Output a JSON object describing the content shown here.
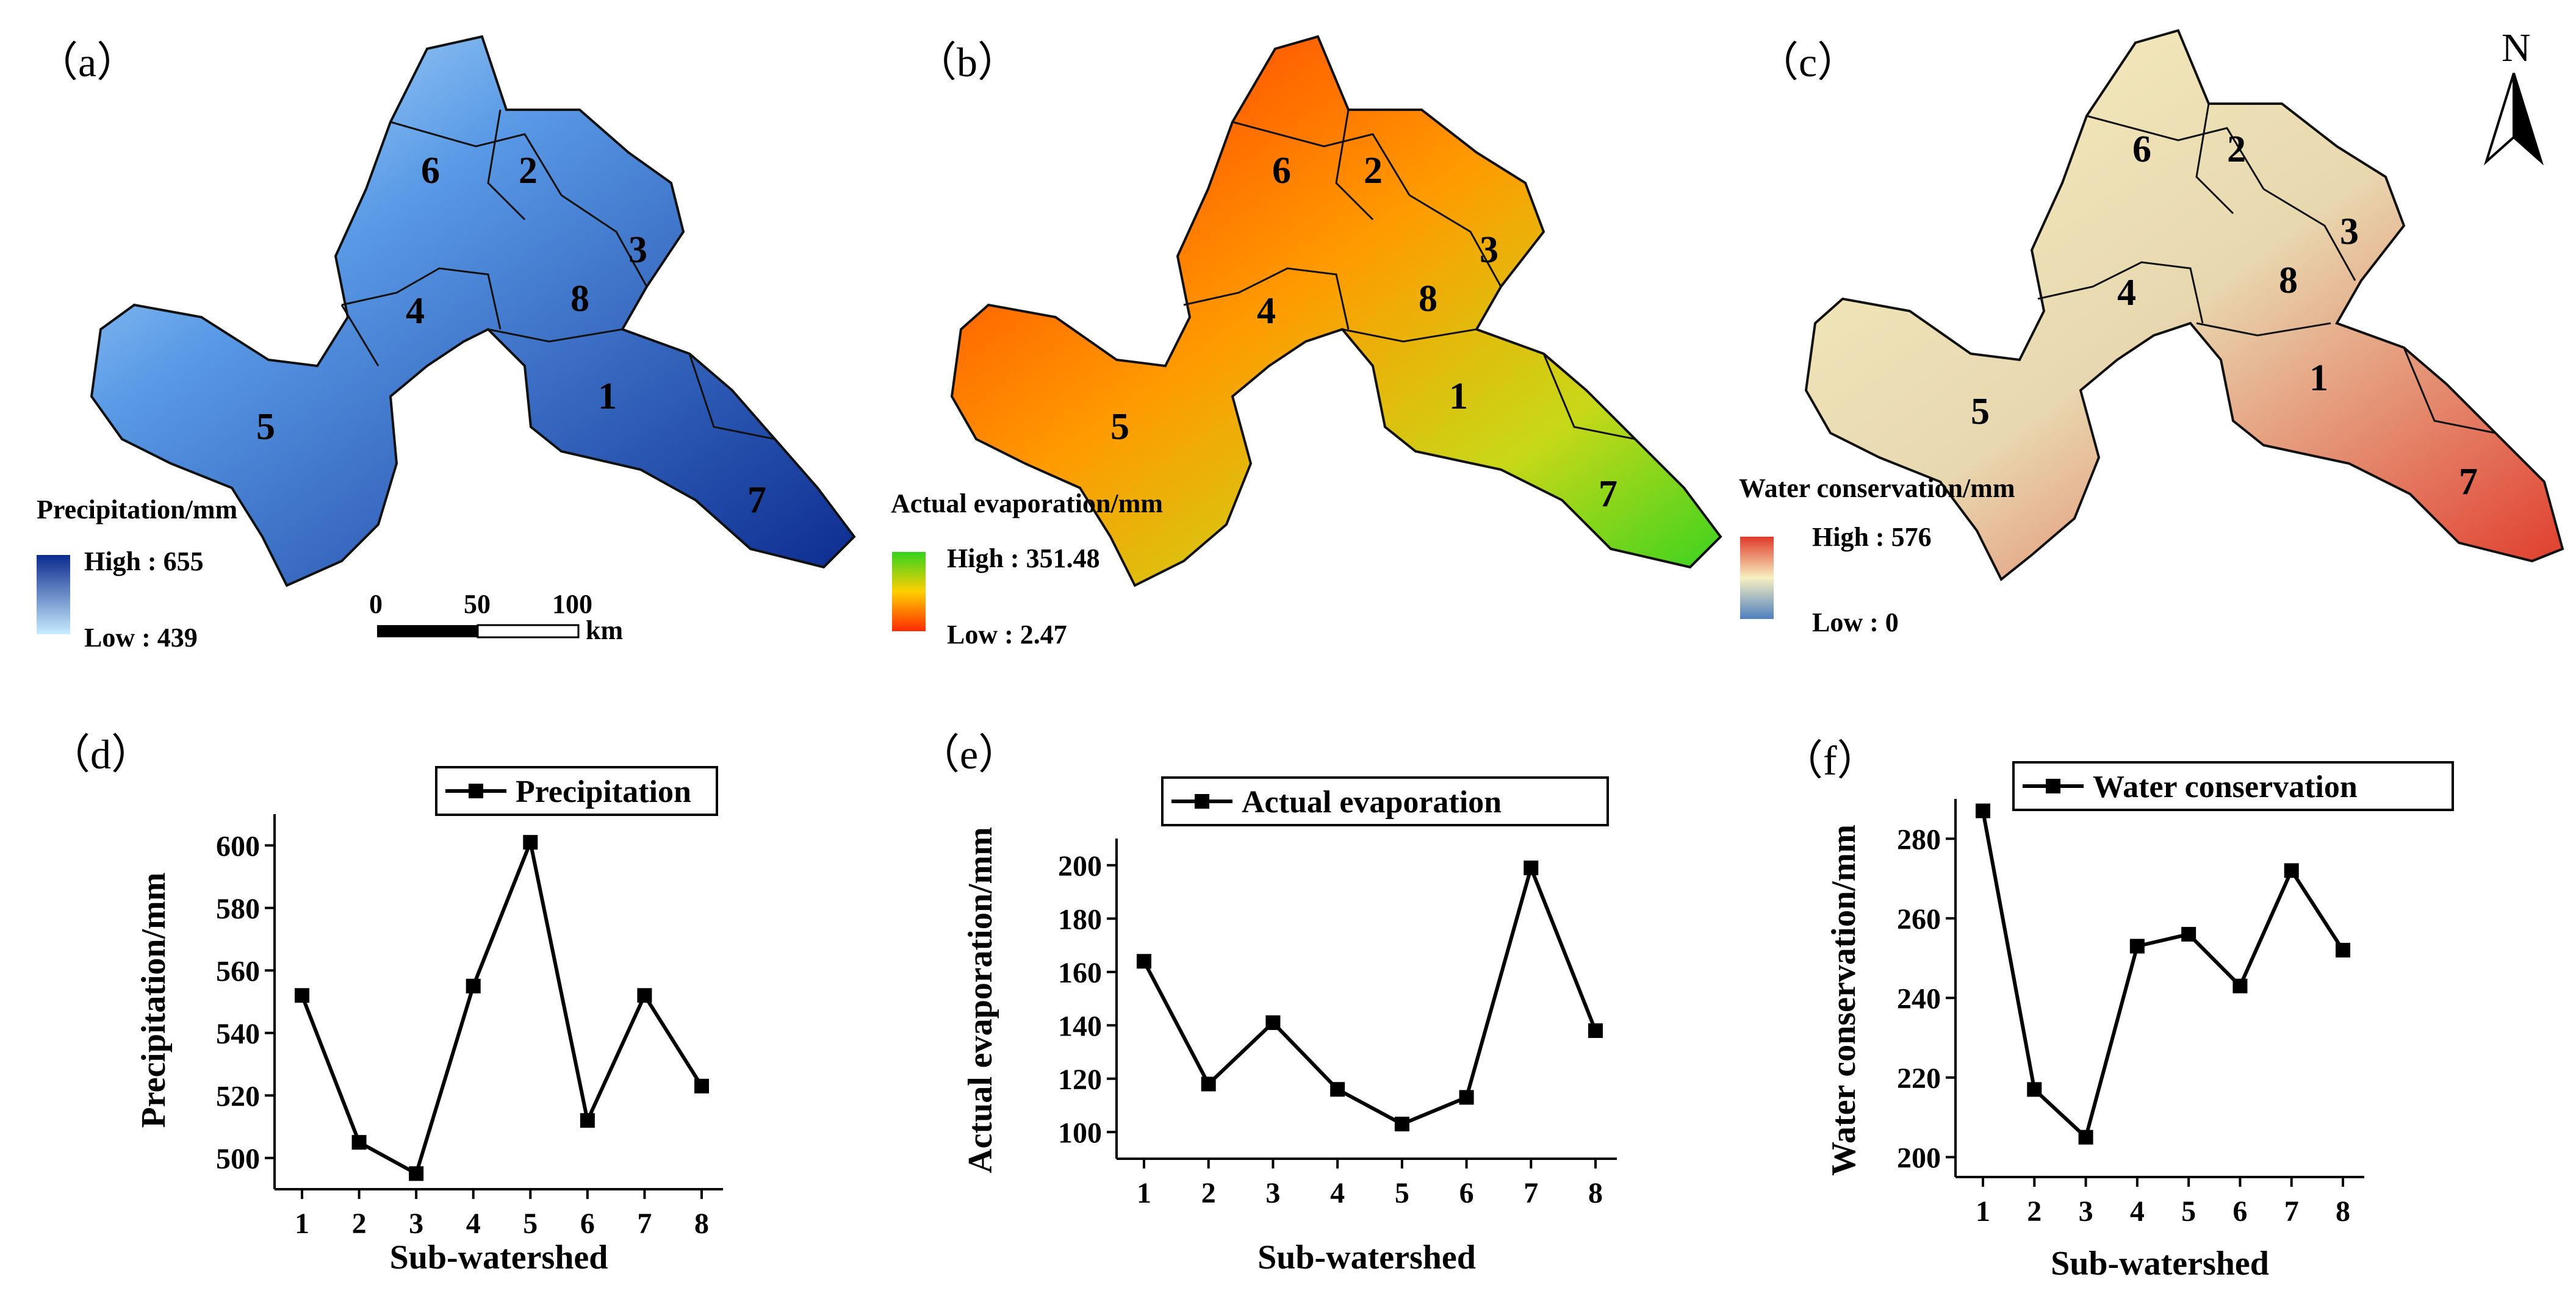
{
  "maps": [
    {
      "panel": "（a）",
      "legend_title": "Precipitation/mm",
      "high": "High : 655",
      "low": "Low : 439",
      "colors": {
        "high": "#0b2a8f",
        "low": "#c8ecff"
      },
      "subwatersheds": [
        "1",
        "2",
        "3",
        "4",
        "5",
        "6",
        "7",
        "8"
      ]
    },
    {
      "panel": "（b）",
      "legend_title": "Actual evaporation/mm",
      "high": "High : 351.48",
      "low": "Low : 2.47",
      "colors": {
        "high": "#33d21f",
        "low": "#ff2a00"
      },
      "subwatersheds": [
        "1",
        "2",
        "3",
        "4",
        "5",
        "6",
        "7",
        "8"
      ]
    },
    {
      "panel": "（c）",
      "legend_title": "Water conservation/mm",
      "high": "High : 576",
      "low": "Low : 0",
      "colors": {
        "high": "#e03a2a",
        "mid": "#f7f0c0",
        "low": "#4f7fbf"
      },
      "subwatersheds": [
        "1",
        "2",
        "3",
        "4",
        "5",
        "6",
        "7",
        "8"
      ]
    }
  ],
  "scale_bar": {
    "ticks": [
      "0",
      "50",
      "100"
    ],
    "unit": "km"
  },
  "north_arrow": {
    "label": "N"
  },
  "chart_data": [
    {
      "panel": "（d）",
      "type": "line",
      "xlabel": "Sub-watershed",
      "ylabel": "Precipitation/mm",
      "categories": [
        "1",
        "2",
        "3",
        "4",
        "5",
        "6",
        "7",
        "8"
      ],
      "series": [
        {
          "name": "Precipitation",
          "values": [
            552,
            505,
            495,
            555,
            601,
            512,
            552,
            523
          ]
        }
      ],
      "ylim": [
        490,
        610
      ],
      "yticks": [
        500,
        520,
        540,
        560,
        580,
        600
      ]
    },
    {
      "panel": "（e）",
      "type": "line",
      "xlabel": "Sub-watershed",
      "ylabel": "Actual evaporation/mm",
      "categories": [
        "1",
        "2",
        "3",
        "4",
        "5",
        "6",
        "7",
        "8"
      ],
      "series": [
        {
          "name": "Actual evaporation",
          "values": [
            164,
            118,
            141,
            116,
            103,
            113,
            199,
            138
          ]
        }
      ],
      "ylim": [
        90,
        210
      ],
      "yticks": [
        100,
        120,
        140,
        160,
        180,
        200
      ]
    },
    {
      "panel": "（f）",
      "type": "line",
      "xlabel": "Sub-watershed",
      "ylabel": "Water conservation/mm",
      "categories": [
        "1",
        "2",
        "3",
        "4",
        "5",
        "6",
        "7",
        "8"
      ],
      "series": [
        {
          "name": "Water conservation",
          "values": [
            287,
            217,
            205,
            253,
            256,
            243,
            272,
            252
          ]
        }
      ],
      "ylim": [
        195,
        290
      ],
      "yticks": [
        200,
        220,
        240,
        260,
        280
      ]
    }
  ]
}
